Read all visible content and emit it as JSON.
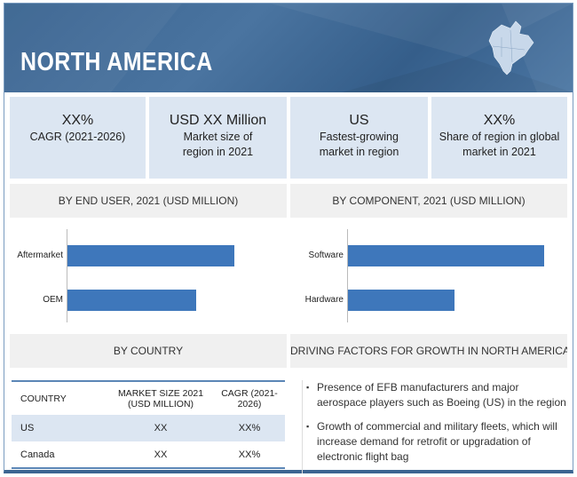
{
  "header": {
    "title": "NORTH AMERICA",
    "icon": "north-america-map-icon"
  },
  "stats": [
    {
      "value": "XX%",
      "label": "CAGR (2021-2026)"
    },
    {
      "value": "USD XX Million",
      "label": "Market size of region in 2021"
    },
    {
      "value": "US",
      "label": "Fastest-growing market in region"
    },
    {
      "value": "XX%",
      "label": "Share of region in global market in 2021"
    }
  ],
  "chart_data": [
    {
      "type": "bar",
      "orientation": "horizontal",
      "title": "BY END USER, 2021 (USD MILLION)",
      "categories": [
        "Aftermarket",
        "OEM"
      ],
      "values": [
        184,
        142
      ],
      "units": "relative",
      "color": "#3e77bb"
    },
    {
      "type": "bar",
      "orientation": "horizontal",
      "title": "BY COMPONENT, 2021 (USD MILLION)",
      "categories": [
        "Software",
        "Hardware"
      ],
      "values": [
        216,
        117
      ],
      "units": "relative",
      "color": "#3e77bb"
    }
  ],
  "country": {
    "title": "BY COUNTRY",
    "headers": [
      "COUNTRY",
      "MARKET SIZE 2021 (USD MILLION)",
      "CAGR (2021-2026)"
    ],
    "rows": [
      [
        "US",
        "XX",
        "XX%"
      ],
      [
        "Canada",
        "XX",
        "XX%"
      ]
    ]
  },
  "factors": {
    "title": "DRIVING FACTORS FOR GROWTH IN NORTH AMERICA",
    "items": [
      "Presence of EFB manufacturers and major aerospace players such as Boeing (US) in the region",
      "Growth of commercial and military fleets, which will increase demand for retrofit or upgradation of electronic flight bag"
    ]
  }
}
